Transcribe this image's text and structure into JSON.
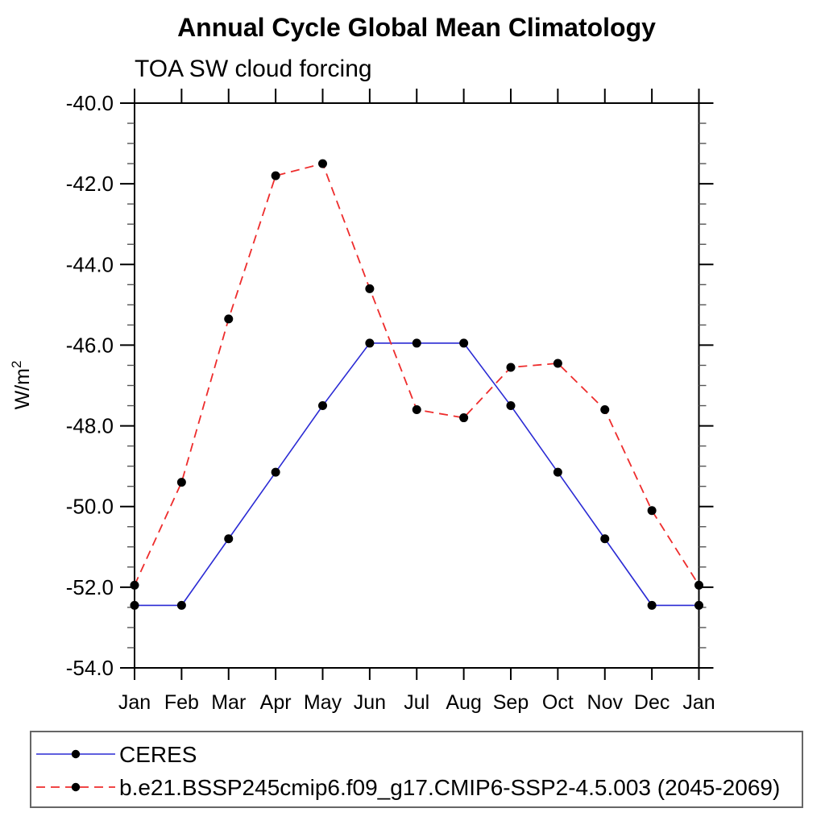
{
  "page_background": "#ffffff",
  "chart_data": {
    "type": "line",
    "title": "Annual Cycle Global Mean Climatology",
    "subtitle": "TOA SW cloud forcing",
    "ylabel_base": "W/m",
    "ylabel_sup": "2",
    "categories": [
      "Jan",
      "Feb",
      "Mar",
      "Apr",
      "May",
      "Jun",
      "Jul",
      "Aug",
      "Sep",
      "Oct",
      "Nov",
      "Dec",
      "Jan"
    ],
    "ylim": [
      -54.0,
      -40.0
    ],
    "ytick_major_values": [
      -40,
      -42,
      -44,
      -46,
      -48,
      -50,
      -52,
      -54
    ],
    "ytick_labels": [
      "-40.0",
      "-42.0",
      "-44.0",
      "-46.0",
      "-48.0",
      "-50.0",
      "-52.0",
      "-54.0"
    ],
    "ytick_minor_step": 0.5,
    "grid": false,
    "axis_color": "#000000",
    "marker_color": "#000000",
    "legend_position": "bottom",
    "series": [
      {
        "name": "CERES",
        "color": "#2a2ad4",
        "line_style": "solid",
        "marker": "filled-circle",
        "values": [
          -52.45,
          -52.45,
          -50.8,
          -49.15,
          -47.5,
          -45.95,
          -45.95,
          -45.95,
          -47.5,
          -49.15,
          -50.8,
          -52.45,
          -52.45
        ]
      },
      {
        "name": "b.e21.BSSP245cmip6.f09_g17.CMIP6-SSP2-4.5.003 (2045-2069)",
        "color": "#ee2c2c",
        "line_style": "dashed",
        "marker": "filled-circle",
        "values": [
          -51.95,
          -49.4,
          -45.35,
          -41.8,
          -41.5,
          -44.6,
          -47.6,
          -47.8,
          -46.55,
          -46.45,
          -47.6,
          -50.1,
          -51.95
        ]
      }
    ]
  }
}
